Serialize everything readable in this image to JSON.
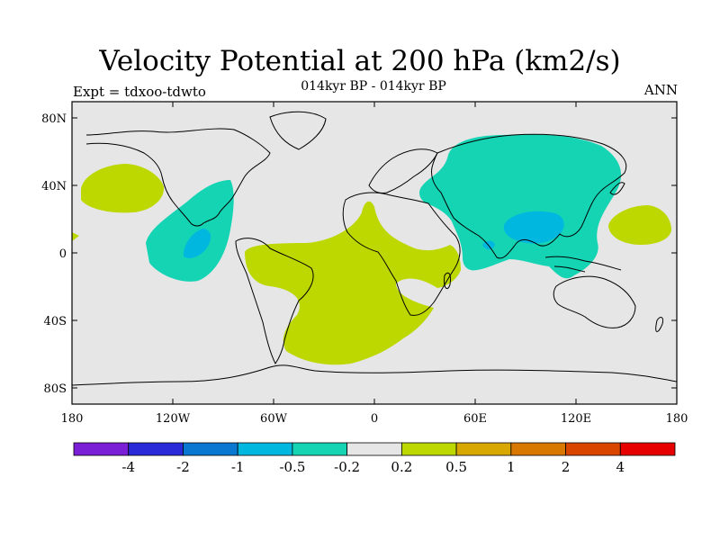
{
  "title": "Velocity Potential at 200 hPa (km2/s)",
  "subtitle": "014kyr BP - 014kyr BP",
  "left_label": "Expt = tdxoo-tdwto",
  "right_label": "ANN",
  "lat_ticks": [
    "80N",
    "40N",
    "0",
    "40S",
    "80S"
  ],
  "lon_ticks": [
    "180",
    "120W",
    "60W",
    "0",
    "60E",
    "120E",
    "180"
  ],
  "colorbar": {
    "colors": [
      "#7a1fd6",
      "#2a2ad8",
      "#0a78d0",
      "#00b7e0",
      "#14d4b4",
      "#e6e6e6",
      "#bcd800",
      "#d8a800",
      "#d87800",
      "#d84600",
      "#e60000"
    ],
    "labels": [
      "-4",
      "-2",
      "-1",
      "-0.5",
      "-0.2",
      "0.2",
      "0.5",
      "1",
      "2",
      "4"
    ]
  },
  "colors": {
    "background": "#e6e6e6",
    "positive_weak": "#bcd800",
    "negative_weak": "#14d4b4",
    "negative_moderate": "#00b7e0"
  }
}
